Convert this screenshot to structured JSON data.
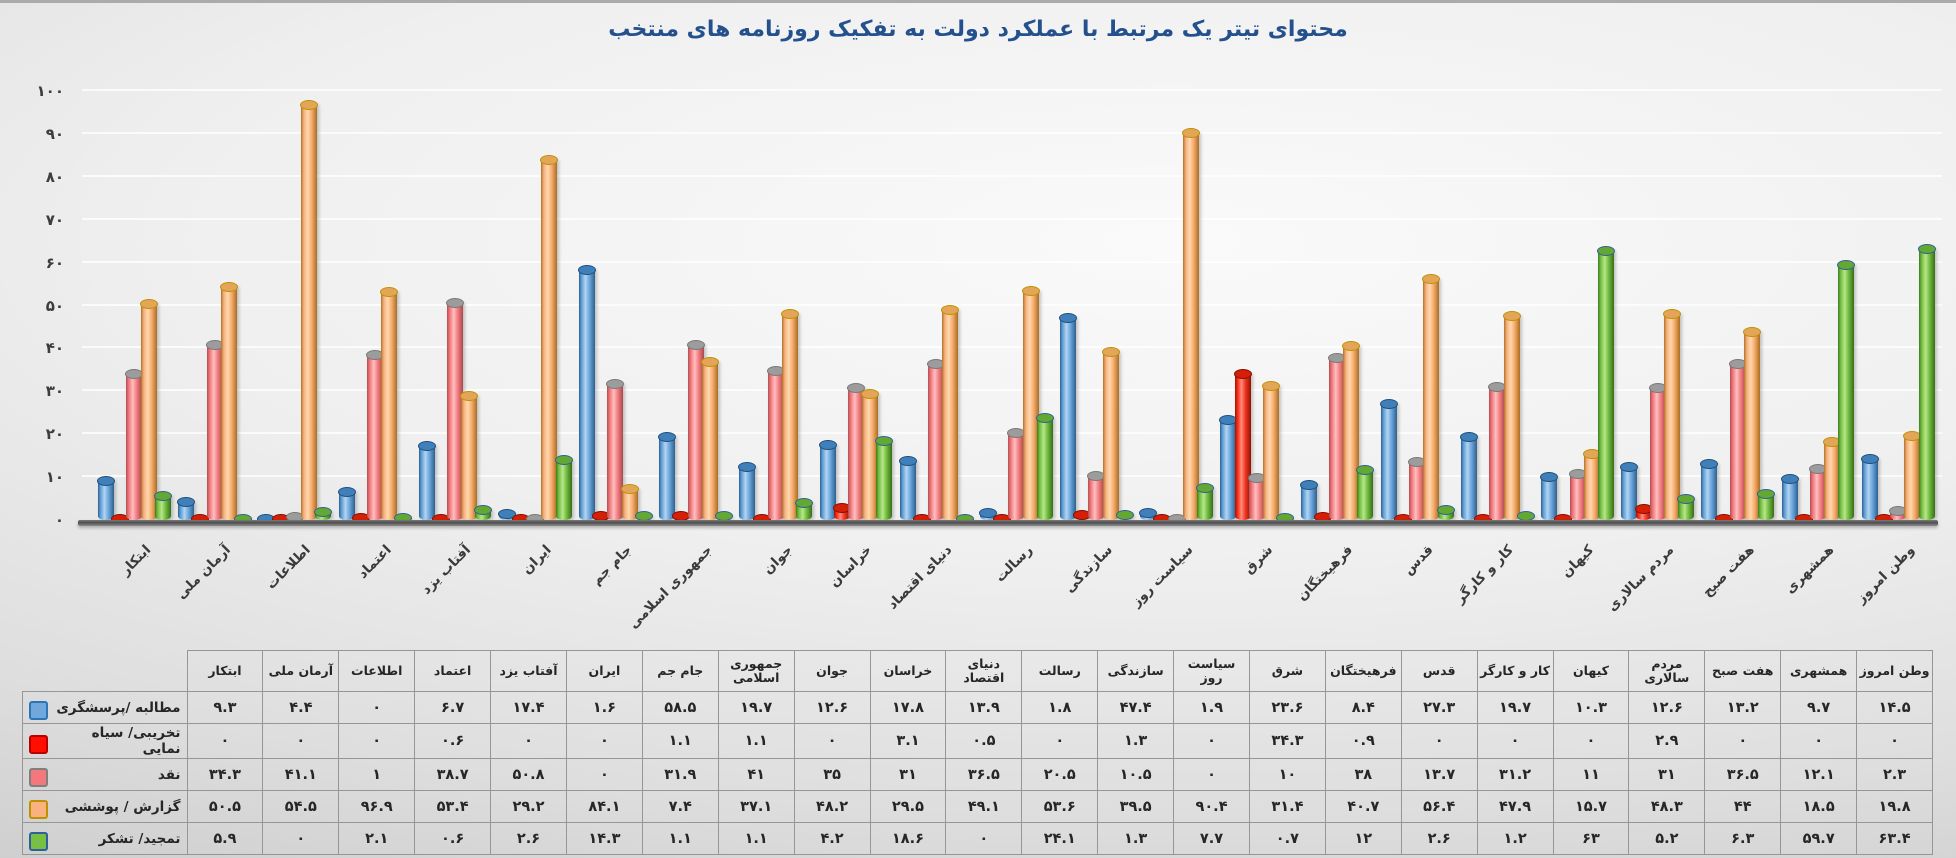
{
  "chart_data": {
    "type": "bar",
    "title": "محتوای تیتر یک مرتبط با عملکرد دولت به تفکیک روزنامه های منتخب",
    "title_color": "#24518e",
    "categories": [
      "ابتکار",
      "آرمان ملی",
      "اطلاعات",
      "اعتماد",
      "آفتاب یزد",
      "ایران",
      "جام جم",
      "جمهوری اسلامی",
      "جوان",
      "خراسان",
      "دنیای اقتصاد",
      "رسالت",
      "سازندگی",
      "سیاست روز",
      "شرق",
      "فرهیختگان",
      "قدس",
      "کار و کارگر",
      "کیهان",
      "مردم سالاری",
      "هفت صبح",
      "همشهری",
      "وطن امروز"
    ],
    "series": [
      {
        "name": "مطالبه /پرسشگری",
        "color": "#6fa8dc",
        "border_color": "#2e75b5",
        "values": [
          9.3,
          4.4,
          0,
          6.7,
          17.4,
          1.6,
          58.5,
          19.7,
          12.6,
          17.8,
          13.9,
          1.8,
          47.4,
          1.9,
          23.6,
          8.4,
          27.3,
          19.7,
          10.3,
          12.6,
          13.2,
          9.7,
          14.5
        ]
      },
      {
        "name": "تخریبی/ سیاه نمایی",
        "color": "#ff0f00",
        "border_color": "#b80000",
        "values": [
          0,
          0,
          0,
          0.6,
          0,
          0,
          1.1,
          1.1,
          0,
          3.1,
          0.5,
          0,
          1.3,
          0,
          34.3,
          0.9,
          0,
          0,
          0,
          2.9,
          0,
          0,
          0
        ]
      },
      {
        "name": "نقد",
        "color": "#f4777b",
        "border_color": "#7f7f7f",
        "values": [
          34.3,
          41.1,
          1,
          38.7,
          50.8,
          0,
          31.9,
          41,
          35,
          31,
          36.5,
          20.5,
          10.5,
          0,
          10,
          38,
          13.7,
          31.2,
          11,
          31,
          36.5,
          12.1,
          2.3
        ]
      },
      {
        "name": "گزارش / پوششی",
        "color": "#f9b27f",
        "border_color": "#bf9000",
        "values": [
          50.5,
          54.5,
          96.9,
          53.4,
          29.2,
          84.1,
          7.4,
          37.1,
          48.2,
          29.5,
          49.1,
          53.6,
          39.5,
          90.4,
          31.4,
          40.7,
          56.4,
          47.9,
          15.7,
          48.3,
          44,
          18.5,
          19.8
        ]
      },
      {
        "name": "تمجید/ تشکر",
        "color": "#77c043",
        "border_color": "#2e5f9b",
        "values": [
          5.9,
          0,
          2.1,
          0.6,
          2.6,
          14.3,
          1.1,
          1.1,
          4.2,
          18.6,
          0,
          24.1,
          1.3,
          7.7,
          0.7,
          12,
          2.6,
          1.2,
          63,
          5.2,
          6.3,
          59.7,
          63.4
        ]
      }
    ],
    "ylim": [
      0,
      100
    ],
    "y_ticks": [
      0,
      10,
      20,
      30,
      40,
      50,
      60,
      70,
      80,
      90,
      100
    ],
    "grid": true,
    "number_style": "persian-digits",
    "legend_position": "table-row-headers"
  },
  "table": {
    "corner_label": ""
  }
}
